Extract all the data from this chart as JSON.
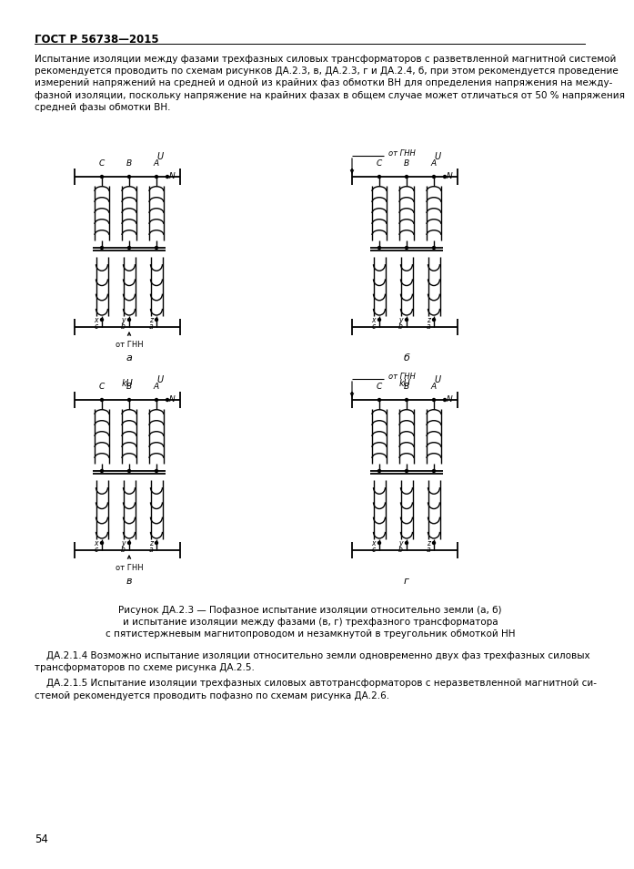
{
  "title": "ГОСТ Р 56738—2015",
  "page_number": "54",
  "para_lines": [
    "Испытание изоляции между фазами трехфазных силовых трансформаторов с разветвленной магнитной системой",
    "рекомендуется проводить по схемам рисунков ДА.2.3, в, ДА.2.3, г и ДА.2.4, б, при этом рекомендуется проведение",
    "измерений напряжений на средней и одной из крайних фаз обмотки ВН для определения напряжения на между-",
    "фазной изоляции, поскольку напряжение на крайних фазах в общем случае может отличаться от 50 % напряжения",
    "средней фазы обмотки ВН."
  ],
  "note1_lines": [
    "    ДА.2.1.4 Возможно испытание изоляции относительно земли одновременно двух фаз трехфазных силовых",
    "трансформаторов по схеме рисунка ДА.2.5."
  ],
  "note2_lines": [
    "    ДА.2.1.5 Испытание изоляции трехфазных силовых автотрансформаторов с неразветвленной магнитной си-",
    "стемой рекомендуется проводить пофазно по схемам рисунка ДА.2.6."
  ],
  "caption_lines": [
    "Рисунок ДА.2.3 — Пофазное испытание изоляции относительно земли (а, б)",
    "и испытание изоляции между фазами (в, г) трехфазного трансформатора",
    "с пятистержневым магнитопроводом и незамкнутой в треугольник обмоткой НН"
  ]
}
